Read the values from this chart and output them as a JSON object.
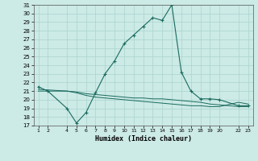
{
  "title": "",
  "xlabel": "Humidex (Indice chaleur)",
  "bg_color": "#cceae6",
  "grid_color": "#aad4cf",
  "line_color": "#1a6b5e",
  "ylim": [
    17,
    31
  ],
  "yticks": [
    17,
    18,
    19,
    20,
    21,
    22,
    23,
    24,
    25,
    26,
    27,
    28,
    29,
    30,
    31
  ],
  "line1_x": [
    1,
    2,
    4,
    5,
    6,
    7,
    8,
    9,
    10,
    11,
    12,
    13,
    14,
    15,
    16,
    17,
    18,
    19,
    20,
    22,
    23
  ],
  "line1_y": [
    21.5,
    21.0,
    19.0,
    17.3,
    18.5,
    20.8,
    23.0,
    24.5,
    26.5,
    27.5,
    28.5,
    29.5,
    29.2,
    31.0,
    23.2,
    21.0,
    20.1,
    20.1,
    20.0,
    19.3,
    19.3
  ],
  "line2_x": [
    1,
    4,
    5,
    6,
    7,
    8,
    9,
    10,
    11,
    12,
    13,
    14,
    15,
    16,
    17,
    18,
    19,
    20,
    22,
    23
  ],
  "line2_y": [
    21.2,
    21.0,
    20.9,
    20.7,
    20.6,
    20.5,
    20.4,
    20.3,
    20.2,
    20.2,
    20.1,
    20.1,
    20.0,
    19.9,
    19.8,
    19.7,
    19.5,
    19.4,
    19.2,
    19.2
  ],
  "line3_x": [
    1,
    4,
    5,
    6,
    7,
    8,
    9,
    10,
    11,
    12,
    13,
    14,
    15,
    16,
    17,
    18,
    19,
    20,
    22,
    23
  ],
  "line3_y": [
    21.0,
    21.0,
    20.8,
    20.5,
    20.3,
    20.2,
    20.1,
    20.0,
    19.9,
    19.8,
    19.7,
    19.6,
    19.5,
    19.4,
    19.3,
    19.3,
    19.2,
    19.2,
    19.7,
    19.5
  ],
  "xtick_positions": [
    1,
    2,
    4,
    5,
    6,
    7,
    8,
    9,
    10,
    11,
    12,
    13,
    14,
    15,
    16,
    17,
    18,
    19,
    20,
    22,
    23
  ],
  "xtick_labels": [
    "1",
    "2",
    "4",
    "5",
    "6",
    "7",
    "8",
    "9",
    "10",
    "11",
    "12",
    "13",
    "14",
    "15",
    "16",
    "17",
    "18",
    "19",
    "20",
    "22",
    "23"
  ]
}
